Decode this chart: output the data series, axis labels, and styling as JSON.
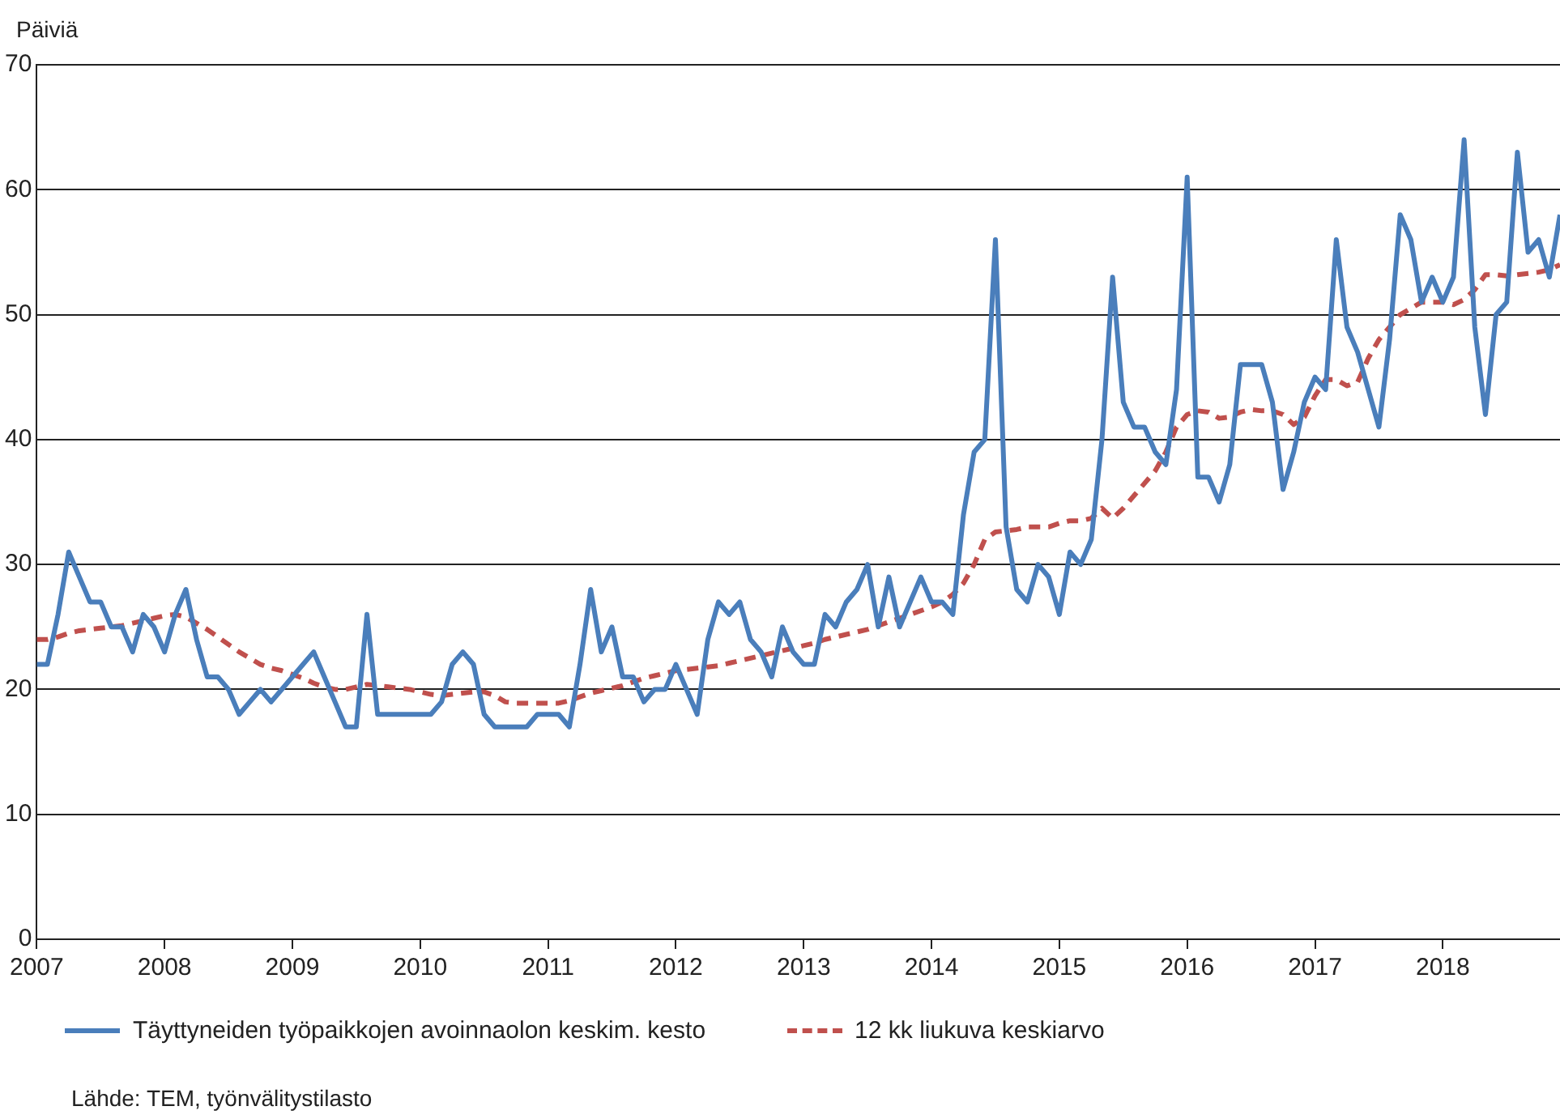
{
  "chart_data": {
    "type": "line",
    "ylabel": "Päiviä",
    "x": [
      "2007-01",
      "2007-02",
      "2007-03",
      "2007-04",
      "2007-05",
      "2007-06",
      "2007-07",
      "2007-08",
      "2007-09",
      "2007-10",
      "2007-11",
      "2007-12",
      "2008-01",
      "2008-02",
      "2008-03",
      "2008-04",
      "2008-05",
      "2008-06",
      "2008-07",
      "2008-08",
      "2008-09",
      "2008-10",
      "2008-11",
      "2008-12",
      "2009-01",
      "2009-02",
      "2009-03",
      "2009-04",
      "2009-05",
      "2009-06",
      "2009-07",
      "2009-08",
      "2009-09",
      "2009-10",
      "2009-11",
      "2009-12",
      "2010-01",
      "2010-02",
      "2010-03",
      "2010-04",
      "2010-05",
      "2010-06",
      "2010-07",
      "2010-08",
      "2010-09",
      "2010-10",
      "2010-11",
      "2010-12",
      "2011-01",
      "2011-02",
      "2011-03",
      "2011-04",
      "2011-05",
      "2011-06",
      "2011-07",
      "2011-08",
      "2011-09",
      "2011-10",
      "2011-11",
      "2011-12",
      "2012-01",
      "2012-02",
      "2012-03",
      "2012-04",
      "2012-05",
      "2012-06",
      "2012-07",
      "2012-08",
      "2012-09",
      "2012-10",
      "2012-11",
      "2012-12",
      "2013-01",
      "2013-02",
      "2013-03",
      "2013-04",
      "2013-05",
      "2013-06",
      "2013-07",
      "2013-08",
      "2013-09",
      "2013-10",
      "2013-11",
      "2013-12",
      "2014-01",
      "2014-02",
      "2014-03",
      "2014-04",
      "2014-05",
      "2014-06",
      "2014-07",
      "2014-08",
      "2014-09",
      "2014-10",
      "2014-11",
      "2014-12",
      "2015-01",
      "2015-02",
      "2015-03",
      "2015-04",
      "2015-05",
      "2015-06",
      "2015-07",
      "2015-08",
      "2015-09",
      "2015-10",
      "2015-11",
      "2015-12",
      "2016-01",
      "2016-02",
      "2016-03",
      "2016-04",
      "2016-05",
      "2016-06",
      "2016-07",
      "2016-08",
      "2016-09",
      "2016-10",
      "2016-11",
      "2016-12",
      "2017-01",
      "2017-02",
      "2017-03",
      "2017-04",
      "2017-05",
      "2017-06",
      "2017-07",
      "2017-08",
      "2017-09",
      "2017-10",
      "2017-11",
      "2017-12",
      "2018-01",
      "2018-02",
      "2018-03",
      "2018-04",
      "2018-05",
      "2018-06",
      "2018-07",
      "2018-08",
      "2018-09",
      "2018-10",
      "2018-11",
      "2018-12"
    ],
    "series": [
      {
        "name": "Täyttyneiden työpaikkojen avoinnaolon keskim. kesto",
        "color": "#4a7ebb",
        "line_style": "solid",
        "values": [
          22,
          22,
          26,
          31,
          29,
          27,
          27,
          25,
          25,
          23,
          26,
          25,
          23,
          26,
          28,
          24,
          21,
          21,
          20,
          18,
          19,
          20,
          19,
          20,
          21,
          22,
          23,
          21,
          19,
          17,
          17,
          26,
          18,
          18,
          18,
          18,
          18,
          18,
          19,
          22,
          23,
          22,
          18,
          17,
          17,
          17,
          17,
          18,
          18,
          18,
          17,
          22,
          28,
          23,
          25,
          21,
          21,
          19,
          20,
          20,
          22,
          20,
          18,
          24,
          27,
          26,
          27,
          24,
          23,
          21,
          25,
          23,
          22,
          22,
          26,
          25,
          27,
          28,
          30,
          25,
          29,
          25,
          27,
          29,
          27,
          27,
          26,
          34,
          39,
          40,
          56,
          33,
          28,
          27,
          30,
          29,
          26,
          31,
          30,
          32,
          40,
          53,
          43,
          41,
          41,
          39,
          38,
          44,
          61,
          37,
          37,
          35,
          38,
          46,
          46,
          46,
          43,
          36,
          39,
          43,
          45,
          44,
          56,
          49,
          47,
          44,
          41,
          48,
          58,
          56,
          51,
          53,
          51,
          53,
          64,
          49,
          42,
          50,
          51,
          63,
          55,
          56,
          53,
          58
        ]
      },
      {
        "name": "12 kk liukuva keskiarvo",
        "color": "#c0504d",
        "line_style": "dashed",
        "values": [
          24,
          24,
          24.2,
          24.5,
          24.7,
          24.8,
          24.9,
          25,
          25.1,
          25.3,
          25.5,
          25.7,
          25.9,
          26,
          25.8,
          25.3,
          24.8,
          24.2,
          23.6,
          23,
          22.5,
          22,
          21.7,
          21.5,
          21.2,
          20.9,
          20.5,
          20.2,
          20,
          20,
          20.2,
          20.4,
          20.3,
          20.2,
          20.1,
          20,
          19.8,
          19.6,
          19.5,
          19.6,
          19.7,
          19.8,
          19.8,
          19.5,
          19,
          18.9,
          18.9,
          18.9,
          18.9,
          18.9,
          19.1,
          19.4,
          19.7,
          19.9,
          20.1,
          20.3,
          20.6,
          20.9,
          21.1,
          21.3,
          21.5,
          21.6,
          21.7,
          21.8,
          21.9,
          22.1,
          22.3,
          22.5,
          22.7,
          22.9,
          23.1,
          23.3,
          23.5,
          23.7,
          24,
          24.2,
          24.4,
          24.6,
          24.8,
          25.1,
          25.4,
          25.7,
          26,
          26.3,
          26.6,
          27,
          27.6,
          28.5,
          30,
          32,
          32.6,
          32.7,
          32.8,
          33,
          33,
          33,
          33.3,
          33.5,
          33.5,
          33.7,
          34.5,
          33.7,
          34.5,
          35.5,
          36.5,
          37.5,
          39,
          41,
          42,
          42.3,
          42.2,
          41.7,
          41.8,
          42.2,
          42.4,
          42.3,
          42.3,
          42,
          41.2,
          41.8,
          43.5,
          44.8,
          44.8,
          44.3,
          44.6,
          46.5,
          48,
          49,
          50,
          50.5,
          51,
          51,
          51,
          50.8,
          51.2,
          52,
          53.2,
          53.2,
          53.1,
          53.2,
          53.3,
          53.4,
          53.6,
          54
        ]
      }
    ],
    "xlim": [
      "2007-01",
      "2018-12"
    ],
    "xticks": [
      "2007",
      "2008",
      "2009",
      "2010",
      "2011",
      "2012",
      "2013",
      "2014",
      "2015",
      "2016",
      "2017",
      "2018"
    ],
    "ylim": [
      0,
      70
    ],
    "yticks": [
      0,
      10,
      20,
      30,
      40,
      50,
      60,
      70
    ],
    "grid": "y",
    "legend": "bottom",
    "marker": "none",
    "annotations": [
      "Lähde: TEM, työnvälitystilasto"
    ]
  }
}
